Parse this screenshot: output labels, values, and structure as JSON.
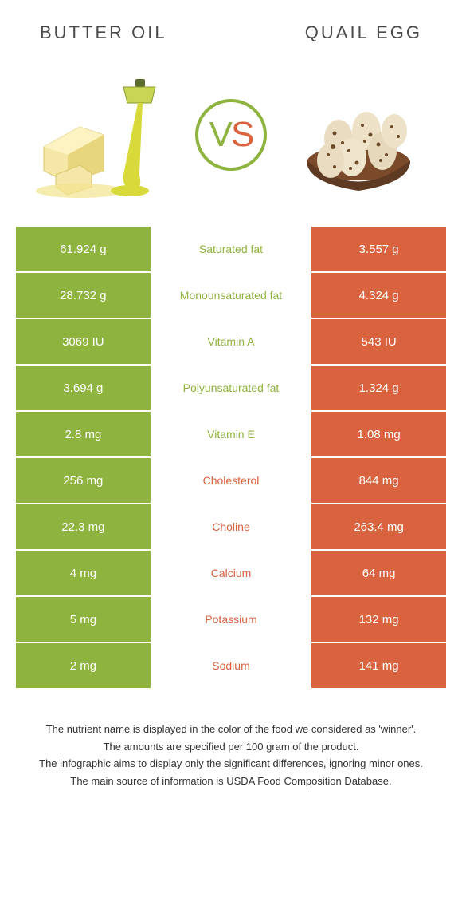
{
  "header": {
    "left": "Butter oil",
    "right": "Quail egg"
  },
  "vs": {
    "v": "V",
    "s": "S"
  },
  "colors": {
    "green": "#8fb33f",
    "orange": "#d9623f",
    "white": "#ffffff"
  },
  "table": {
    "rows": [
      {
        "left": "61.924 g",
        "label": "Saturated fat",
        "right": "3.557 g",
        "winner": "left"
      },
      {
        "left": "28.732 g",
        "label": "Monounsaturated fat",
        "right": "4.324 g",
        "winner": "left"
      },
      {
        "left": "3069 IU",
        "label": "Vitamin A",
        "right": "543 IU",
        "winner": "left"
      },
      {
        "left": "3.694 g",
        "label": "Polyunsaturated fat",
        "right": "1.324 g",
        "winner": "left"
      },
      {
        "left": "2.8 mg",
        "label": "Vitamin E",
        "right": "1.08 mg",
        "winner": "left"
      },
      {
        "left": "256 mg",
        "label": "Cholesterol",
        "right": "844 mg",
        "winner": "right"
      },
      {
        "left": "22.3 mg",
        "label": "Choline",
        "right": "263.4 mg",
        "winner": "right"
      },
      {
        "left": "4 mg",
        "label": "Calcium",
        "right": "64 mg",
        "winner": "right"
      },
      {
        "left": "5 mg",
        "label": "Potassium",
        "right": "132 mg",
        "winner": "right"
      },
      {
        "left": "2 mg",
        "label": "Sodium",
        "right": "141 mg",
        "winner": "right"
      }
    ]
  },
  "footer": {
    "line1": "The nutrient name is displayed in the color of the food we considered as 'winner'.",
    "line2": "The amounts are specified per 100 gram of the product.",
    "line3": "The infographic aims to display only the significant differences, ignoring minor ones.",
    "line4": "The main source of information is USDA Food Composition Database."
  }
}
